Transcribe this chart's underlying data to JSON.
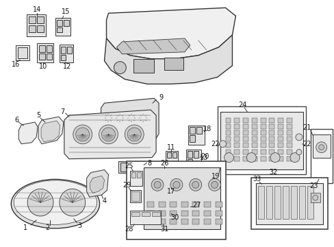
{
  "bg_color": "#ffffff",
  "fig_width": 4.89,
  "fig_height": 3.6,
  "dpi": 100,
  "line_color": "#333333",
  "text_color": "#111111",
  "text_fontsize": 7.0,
  "border_color": "#444444"
}
